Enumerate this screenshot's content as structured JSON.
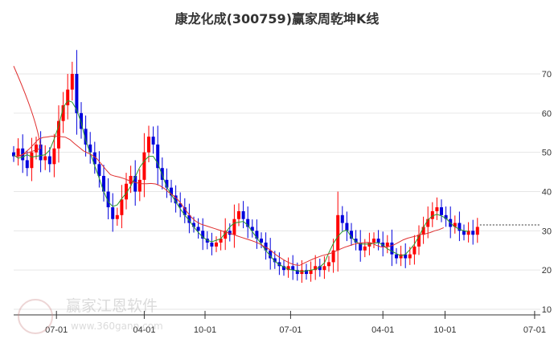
{
  "chart_data": {
    "type": "candlestick",
    "title": "康龙化成(300759)赢家周乾坤K线",
    "ylim": [
      8.5,
      75
    ],
    "yticks": [
      10,
      20,
      30,
      40,
      50,
      60,
      70
    ],
    "xticks": [
      {
        "label": "07-01",
        "week": 9.5
      },
      {
        "label": "04-01",
        "week": 29
      },
      {
        "label": "10-01",
        "week": 42.5
      },
      {
        "label": "07-01",
        "week": 61.5
      },
      {
        "label": "04-01",
        "week": 82
      },
      {
        "label": "10-01",
        "week": 95.8
      },
      {
        "label": "07-01",
        "week": 115.7
      }
    ],
    "closes": [
      49,
      51,
      48,
      46,
      50,
      52,
      48,
      49,
      47,
      51,
      58,
      62,
      66,
      70,
      60,
      56,
      52,
      50,
      47,
      44,
      40,
      36,
      33,
      34,
      38,
      42,
      44,
      40,
      43,
      50,
      54,
      52,
      46,
      43,
      41,
      39,
      37,
      36,
      34,
      32,
      31,
      30,
      28,
      27,
      26,
      27,
      28,
      30,
      29,
      33,
      35,
      33,
      31,
      30,
      28,
      27,
      25,
      23,
      22,
      21,
      20,
      21,
      20,
      19,
      20,
      19,
      20,
      21,
      20,
      21,
      22,
      25,
      34,
      32,
      30,
      28,
      27,
      25,
      26,
      27,
      28,
      27,
      26,
      27,
      24,
      23,
      24,
      23,
      24,
      26,
      29,
      31,
      33,
      35,
      36,
      34,
      33,
      31,
      32,
      30,
      29,
      30,
      29,
      31
    ],
    "projection_level": 31.5,
    "series": [
      {
        "name": "short-ma",
        "color": "#2a9a2a"
      },
      {
        "name": "long-ma",
        "color": "#e03030"
      }
    ],
    "up_color": "#ff0000",
    "down_color": "#0000dd"
  },
  "watermark": {
    "name": "赢家江恩软件",
    "url": "www.360gann.com"
  }
}
